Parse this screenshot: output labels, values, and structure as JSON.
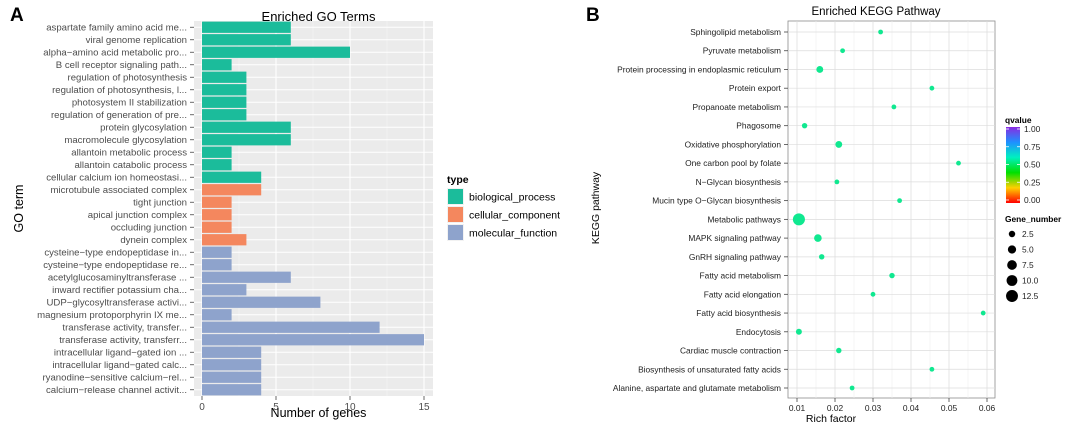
{
  "panel_a_label": "A",
  "panel_b_label": "B",
  "colors": {
    "panel_bg": "#ebebeb",
    "grid": "#ffffff",
    "biological_process": "#1bbc9b",
    "cellular_component": "#f4875e",
    "molecular_function": "#8ea3cc"
  },
  "chart_data": [
    {
      "type": "bar",
      "orientation": "horizontal",
      "title": "Enriched GO Terms",
      "xlabel": "Number of genes",
      "ylabel": "GO term",
      "xlim": [
        0,
        16
      ],
      "xticks": [
        0,
        5,
        10,
        15
      ],
      "grid": true,
      "legend": {
        "title": "type",
        "position": "right",
        "entries": [
          {
            "key": "biological_process",
            "label": "biological_process"
          },
          {
            "key": "cellular_component",
            "label": "cellular_component"
          },
          {
            "key": "molecular_function",
            "label": "molecular_function"
          }
        ]
      },
      "bars": [
        {
          "label": "aspartate family amino acid me...",
          "value": 6,
          "type": "biological_process"
        },
        {
          "label": "viral genome replication",
          "value": 6,
          "type": "biological_process"
        },
        {
          "label": "alpha−amino acid metabolic pro...",
          "value": 10,
          "type": "biological_process"
        },
        {
          "label": "B cell receptor signaling path...",
          "value": 2,
          "type": "biological_process"
        },
        {
          "label": "regulation of photosynthesis",
          "value": 3,
          "type": "biological_process"
        },
        {
          "label": "regulation of photosynthesis, l...",
          "value": 3,
          "type": "biological_process"
        },
        {
          "label": "photosystem II stabilization",
          "value": 3,
          "type": "biological_process"
        },
        {
          "label": "regulation of generation of pre...",
          "value": 3,
          "type": "biological_process"
        },
        {
          "label": "protein glycosylation",
          "value": 6,
          "type": "biological_process"
        },
        {
          "label": "macromolecule glycosylation",
          "value": 6,
          "type": "biological_process"
        },
        {
          "label": "allantoin metabolic process",
          "value": 2,
          "type": "biological_process"
        },
        {
          "label": "allantoin catabolic process",
          "value": 2,
          "type": "biological_process"
        },
        {
          "label": "cellular calcium ion homeostasi...",
          "value": 4,
          "type": "biological_process"
        },
        {
          "label": "microtubule associated complex",
          "value": 4,
          "type": "cellular_component"
        },
        {
          "label": "tight junction",
          "value": 2,
          "type": "cellular_component"
        },
        {
          "label": "apical junction complex",
          "value": 2,
          "type": "cellular_component"
        },
        {
          "label": "occluding junction",
          "value": 2,
          "type": "cellular_component"
        },
        {
          "label": "dynein complex",
          "value": 3,
          "type": "cellular_component"
        },
        {
          "label": "cysteine−type endopeptidase in...",
          "value": 2,
          "type": "molecular_function"
        },
        {
          "label": "cysteine−type endopeptidase re...",
          "value": 2,
          "type": "molecular_function"
        },
        {
          "label": "acetylglucosaminyltransferase ...",
          "value": 6,
          "type": "molecular_function"
        },
        {
          "label": "inward rectifier potassium cha...",
          "value": 3,
          "type": "molecular_function"
        },
        {
          "label": "UDP−glycosyltransferase activi...",
          "value": 8,
          "type": "molecular_function"
        },
        {
          "label": "magnesium protoporphyrin IX me...",
          "value": 2,
          "type": "molecular_function"
        },
        {
          "label": "transferase activity, transfer...",
          "value": 12,
          "type": "molecular_function"
        },
        {
          "label": "transferase activity, transferr...",
          "value": 15,
          "type": "molecular_function"
        },
        {
          "label": "intracellular ligand−gated ion ...",
          "value": 4,
          "type": "molecular_function"
        },
        {
          "label": "intracellular ligand−gated calc...",
          "value": 4,
          "type": "molecular_function"
        },
        {
          "label": "ryanodine−sensitive calcium−rel...",
          "value": 4,
          "type": "molecular_function"
        },
        {
          "label": "calcium−release channel activit...",
          "value": 4,
          "type": "molecular_function"
        }
      ]
    },
    {
      "type": "scatter",
      "title": "Enriched KEGG Pathway",
      "xlabel": "Rich factor",
      "ylabel": "KEGG pathway",
      "xlim": [
        0.0075,
        0.0615
      ],
      "xticks": [
        0.01,
        0.02,
        0.03,
        0.04,
        0.05,
        0.06
      ],
      "xtick_labels": [
        "0.01",
        "0.02",
        "0.03",
        "0.04",
        "0.05",
        "0.06"
      ],
      "grid": true,
      "color_legend": {
        "title": "qvalue",
        "range": [
          0,
          1
        ],
        "ticks": [
          "1.00",
          "0.75",
          "0.50",
          "0.25",
          "0.00"
        ],
        "gradient": [
          "#8a2be2",
          "#1e90ff",
          "#00f0c0",
          "#00e000",
          "#ffd000",
          "#ff0000"
        ]
      },
      "size_legend": {
        "title": "Gene_number",
        "entries": [
          "2.5",
          "5.0",
          "7.5",
          "10.0",
          "12.5"
        ],
        "values": [
          2.5,
          5.0,
          7.5,
          10.0,
          12.5
        ]
      },
      "points": [
        {
          "pathway": "Sphingolipid metabolism",
          "rich_factor": 0.032,
          "gene_number": 1,
          "color": "#10e890"
        },
        {
          "pathway": "Pyruvate metabolism",
          "rich_factor": 0.022,
          "gene_number": 1,
          "color": "#10e890"
        },
        {
          "pathway": "Protein processing in endoplasmic reticulum",
          "rich_factor": 0.016,
          "gene_number": 3,
          "color": "#10e890"
        },
        {
          "pathway": "Protein export",
          "rich_factor": 0.0455,
          "gene_number": 1,
          "color": "#10e890"
        },
        {
          "pathway": "Propanoate metabolism",
          "rich_factor": 0.0355,
          "gene_number": 1,
          "color": "#10e890"
        },
        {
          "pathway": "Phagosome",
          "rich_factor": 0.012,
          "gene_number": 1.5,
          "color": "#10e890"
        },
        {
          "pathway": "Oxidative phosphorylation",
          "rich_factor": 0.021,
          "gene_number": 3,
          "color": "#10e890"
        },
        {
          "pathway": "One carbon pool by folate",
          "rich_factor": 0.0525,
          "gene_number": 1,
          "color": "#10e890"
        },
        {
          "pathway": "N−Glycan biosynthesis",
          "rich_factor": 0.0205,
          "gene_number": 1,
          "color": "#10e890"
        },
        {
          "pathway": "Mucin type O−Glycan biosynthesis",
          "rich_factor": 0.037,
          "gene_number": 1,
          "color": "#10e890"
        },
        {
          "pathway": "Metabolic pathways",
          "rich_factor": 0.0105,
          "gene_number": 13,
          "color": "#10e890"
        },
        {
          "pathway": "MAPK signaling pathway",
          "rich_factor": 0.0155,
          "gene_number": 4,
          "color": "#10e890"
        },
        {
          "pathway": "GnRH signaling pathway",
          "rich_factor": 0.0165,
          "gene_number": 1.5,
          "color": "#10e890"
        },
        {
          "pathway": "Fatty acid metabolism",
          "rich_factor": 0.035,
          "gene_number": 1.5,
          "color": "#10e890"
        },
        {
          "pathway": "Fatty acid elongation",
          "rich_factor": 0.03,
          "gene_number": 1,
          "color": "#10e890"
        },
        {
          "pathway": "Fatty acid biosynthesis",
          "rich_factor": 0.059,
          "gene_number": 1,
          "color": "#10e890"
        },
        {
          "pathway": "Endocytosis",
          "rich_factor": 0.0105,
          "gene_number": 2,
          "color": "#10e890"
        },
        {
          "pathway": "Cardiac muscle contraction",
          "rich_factor": 0.021,
          "gene_number": 1.5,
          "color": "#10e890"
        },
        {
          "pathway": "Biosynthesis of unsaturated fatty acids",
          "rich_factor": 0.0455,
          "gene_number": 1,
          "color": "#10e890"
        },
        {
          "pathway": "Alanine, aspartate and glutamate metabolism",
          "rich_factor": 0.0245,
          "gene_number": 1,
          "color": "#10e890"
        }
      ]
    }
  ]
}
